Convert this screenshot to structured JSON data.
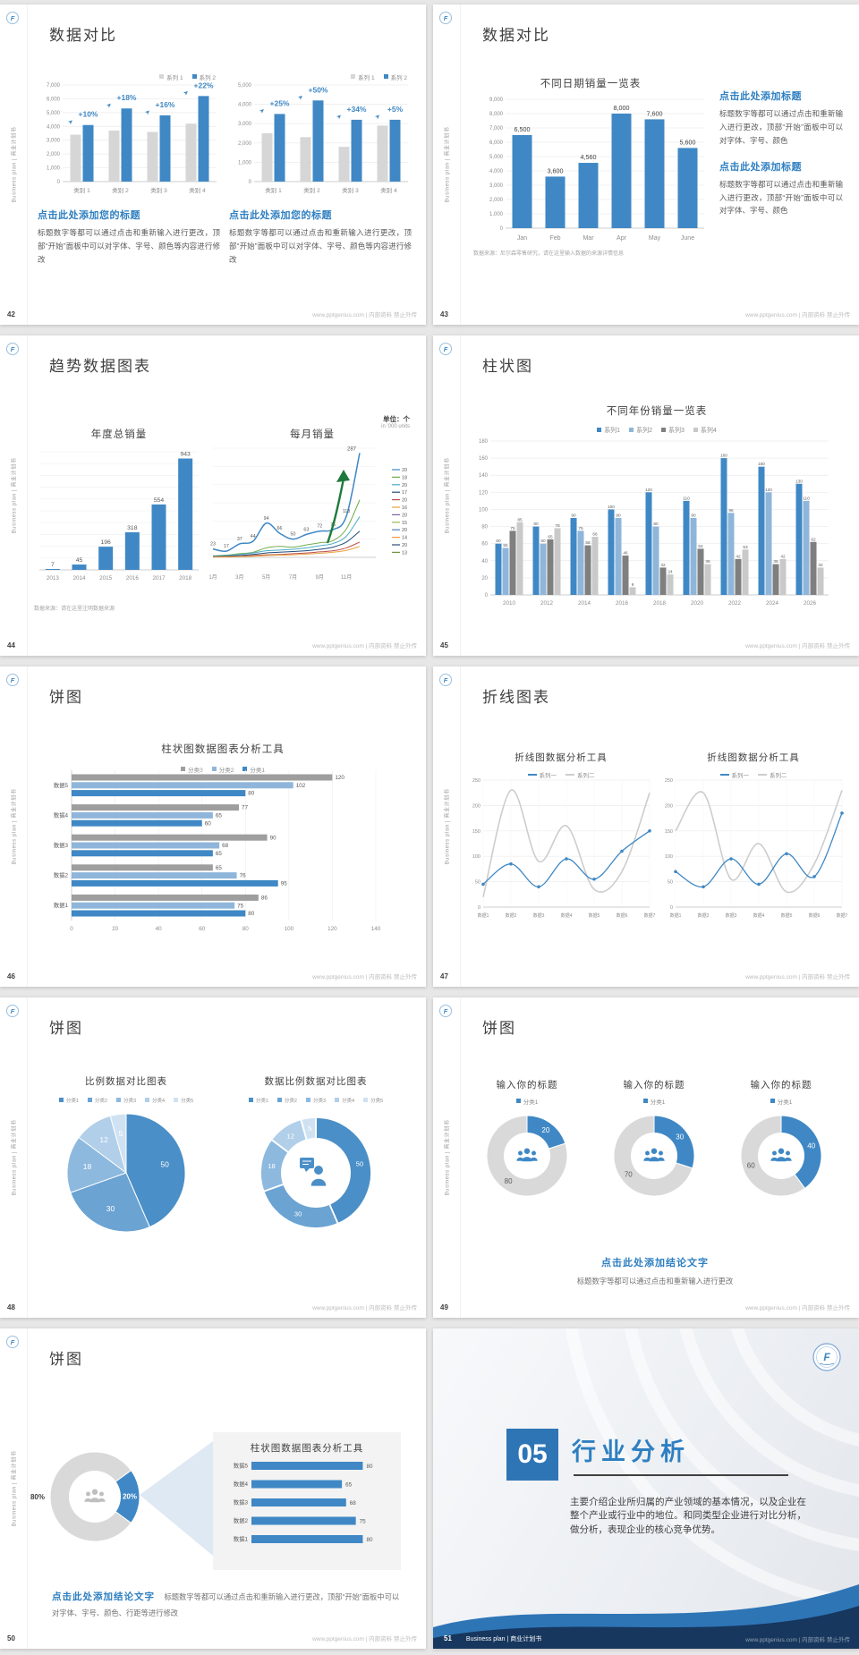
{
  "common": {
    "sidebar_text": "Business plan | 商业计划书",
    "watermark": "www.pptgenius.com | 内部资料 禁止外传",
    "colors": {
      "blue": "#3f88c5",
      "light_blue": "#8fb6da",
      "heading_blue": "#2e7fc1",
      "gray_bar": "#d6d6d6"
    }
  },
  "s42": {
    "page": "42",
    "title": "数据对比",
    "legend": [
      "系列 1",
      "系列 2"
    ],
    "heading": "点击此处添加您的标题",
    "body": "标题数字等都可以通过点击和重新输入进行更改，顶部“开始”面板中可以对字体、字号、颜色等内容进行修改",
    "chart_a": {
      "type": "bar",
      "categories": [
        "类别 1",
        "类别 2",
        "类别 3",
        "类别 4"
      ],
      "series": [
        {
          "name": "系列 1",
          "values": [
            3400,
            3700,
            3600,
            4200
          ]
        },
        {
          "name": "系列 2",
          "values": [
            4100,
            5300,
            4800,
            6200
          ]
        }
      ],
      "growth_labels": [
        "+10%",
        "+18%",
        "+16%",
        "+22%"
      ],
      "ylim": [
        0,
        7000
      ],
      "ystep": 1000
    },
    "chart_b": {
      "type": "bar",
      "categories": [
        "类别 1",
        "类别 2",
        "类别 3",
        "类别 4"
      ],
      "series": [
        {
          "name": "系列 1",
          "values": [
            2500,
            2300,
            1800,
            2900
          ]
        },
        {
          "name": "系列 2",
          "values": [
            3500,
            4200,
            3200,
            3200
          ]
        }
      ],
      "growth_labels": [
        "+25%",
        "+50%",
        "+34%",
        "+5%"
      ],
      "ylim": [
        0,
        5000
      ],
      "ystep": 1000
    }
  },
  "s43": {
    "page": "43",
    "title": "数据对比",
    "chart": {
      "type": "bar",
      "title": "不同日期销量一览表",
      "categories": [
        "Jan",
        "Feb",
        "Mar",
        "Apr",
        "May",
        "June"
      ],
      "values": [
        6500,
        3600,
        4560,
        8000,
        7600,
        5600
      ],
      "labels": [
        "6,500",
        "3,600",
        "4,560",
        "8,000",
        "7,600",
        "5,600"
      ],
      "ylim": [
        0,
        9000
      ],
      "ystep": 1000
    },
    "note": "数据来源：尼尔森零售研究，请在这里输入数据的来源详情信息",
    "blocks": [
      {
        "heading": "点击此处添加标题",
        "body": "标题数字等都可以通过点击和重新输入进行更改，顶部“开始”面板中可以对字体、字号、颜色"
      },
      {
        "heading": "点击此处添加标题",
        "body": "标题数字等都可以通过点击和重新输入进行更改，顶部“开始”面板中可以对字体、字号、颜色"
      }
    ]
  },
  "s44": {
    "page": "44",
    "title": "趋势数据图表",
    "unit_label": "单位：个",
    "unit_sub": "in '000 units",
    "note": "数据来源：请在这里注明数据来源",
    "chart_annual": {
      "type": "bar",
      "title": "年度总销量",
      "categories": [
        "2013",
        "2014",
        "2015",
        "2016",
        "2017",
        "2018"
      ],
      "values": [
        7,
        45,
        196,
        318,
        554,
        943
      ],
      "ylim": [
        0,
        1000
      ]
    },
    "chart_monthly": {
      "type": "line",
      "title": "每月销量",
      "x_labels": [
        "1月",
        "3月",
        "5月",
        "7月",
        "9月",
        "11月"
      ],
      "main_series": {
        "name": "系列1",
        "values": [
          23,
          17,
          37,
          44,
          94,
          66,
          50,
          63,
          72,
          76,
          113,
          287
        ]
      },
      "point_labels": [
        "23",
        "17",
        "37",
        "44",
        "94",
        "66",
        "50",
        "63",
        "72",
        "76",
        "113",
        "287"
      ],
      "support_series": [
        [
          4,
          6,
          10,
          14,
          26,
          30,
          28,
          34,
          40,
          46,
          78,
          158
        ],
        [
          3,
          5,
          8,
          12,
          18,
          20,
          22,
          26,
          32,
          38,
          58,
          112
        ],
        [
          2,
          3,
          5,
          8,
          12,
          14,
          16,
          18,
          22,
          28,
          42,
          72
        ],
        [
          1,
          2,
          3,
          5,
          7,
          8,
          10,
          12,
          15,
          18,
          26,
          42
        ],
        [
          1,
          1,
          2,
          3,
          5,
          6,
          7,
          9,
          11,
          14,
          19,
          30
        ]
      ],
      "end_labels": [
        "20",
        "18",
        "20",
        "17",
        "20",
        "16",
        "20",
        "15",
        "20",
        "14",
        "20",
        "13"
      ],
      "ylim": [
        0,
        300
      ]
    }
  },
  "s45": {
    "page": "45",
    "title": "柱状图",
    "chart": {
      "type": "bar",
      "title": "不同年份销量一览表",
      "legend": [
        "系列1",
        "系列2",
        "系列3",
        "系列4"
      ],
      "categories": [
        "2010",
        "2012",
        "2014",
        "2016",
        "2018",
        "2020",
        "2022",
        "2024",
        "2026"
      ],
      "series": [
        {
          "name": "系列1",
          "values": [
            60,
            80,
            90,
            100,
            120,
            110,
            160,
            150,
            130
          ]
        },
        {
          "name": "系列2",
          "values": [
            55,
            60,
            75,
            90,
            80,
            90,
            96,
            120,
            110
          ]
        },
        {
          "name": "系列3",
          "values": [
            75,
            65,
            58,
            46,
            32,
            54,
            42,
            36,
            62
          ]
        },
        {
          "name": "系列4",
          "values": [
            85,
            78,
            68,
            9,
            24,
            36,
            53,
            42,
            32
          ]
        }
      ],
      "ylim": [
        0,
        180
      ],
      "ystep": 20
    }
  },
  "s46": {
    "page": "46",
    "title": "饼图",
    "chart": {
      "type": "bar-horizontal",
      "title": "柱状图数据图表分析工具",
      "legend": [
        "分类3",
        "分类2",
        "分类1"
      ],
      "categories": [
        "数据5",
        "数据4",
        "数据3",
        "数据2",
        "数据1"
      ],
      "series": [
        {
          "name": "分类3",
          "values": [
            120,
            77,
            90,
            65,
            86
          ]
        },
        {
          "name": "分类2",
          "values": [
            102,
            65,
            68,
            76,
            75
          ]
        },
        {
          "name": "分类1",
          "values": [
            80,
            60,
            65,
            95,
            80
          ]
        }
      ],
      "xlim": [
        0,
        140
      ],
      "xstep": 20
    }
  },
  "s47": {
    "page": "47",
    "title": "折线图表",
    "charts": [
      {
        "type": "line",
        "title": "折线图数据分析工具",
        "legend": [
          "系列一",
          "系列二"
        ],
        "x": [
          "数据1",
          "数据2",
          "数据3",
          "数据4",
          "数据5",
          "数据6",
          "数据7"
        ],
        "series": [
          {
            "name": "系列一",
            "values": [
              45,
              85,
              40,
              95,
              55,
              110,
              150
            ]
          },
          {
            "name": "系列二",
            "values": [
              20,
              230,
              90,
              160,
              35,
              70,
              225
            ]
          }
        ],
        "ylim": [
          0,
          250
        ],
        "ystep": 50
      },
      {
        "type": "line",
        "title": "折线图数据分析工具",
        "legend": [
          "系列一",
          "系列二"
        ],
        "x": [
          "数据1",
          "数据2",
          "数据3",
          "数据4",
          "数据5",
          "数据6",
          "数据7"
        ],
        "series": [
          {
            "name": "系列一",
            "values": [
              70,
              40,
              95,
              45,
              105,
              60,
              185
            ]
          },
          {
            "name": "系列二",
            "values": [
              150,
              225,
              55,
              125,
              30,
              85,
              230
            ]
          }
        ],
        "ylim": [
          0,
          250
        ],
        "ystep": 50
      }
    ]
  },
  "s48": {
    "page": "48",
    "title": "饼图",
    "chart_left": {
      "type": "pie",
      "title": "比例数据对比图表",
      "legend": [
        "分类1",
        "分类2",
        "分类3",
        "分类4",
        "分类5"
      ],
      "values": [
        50,
        30,
        18,
        12,
        5
      ]
    },
    "chart_right": {
      "type": "donut",
      "title": "数据比例数据对比图表",
      "legend": [
        "分类1",
        "分类2",
        "分类3",
        "分类4",
        "分类5"
      ],
      "values": [
        50,
        30,
        18,
        12,
        5
      ]
    }
  },
  "s49": {
    "page": "49",
    "title": "饼图",
    "donuts": [
      {
        "title": "输入你的标题",
        "legend": "分类1",
        "value": 20,
        "rest": 80
      },
      {
        "title": "输入你的标题",
        "legend": "分类1",
        "value": 30,
        "rest": 70
      },
      {
        "title": "输入你的标题",
        "legend": "分类1",
        "value": 40,
        "rest": 60
      }
    ],
    "conclusion": "点击此处添加结论文字",
    "body": "标题数字等都可以通过点击和重新输入进行更改"
  },
  "s50": {
    "page": "50",
    "title": "饼图",
    "donut": {
      "type": "donut",
      "blue_label": "20%",
      "gray_label": "80%",
      "blue": 20,
      "gray": 80
    },
    "panel_chart": {
      "type": "bar-horizontal",
      "title": "柱状图数据图表分析工具",
      "categories": [
        "数据5",
        "数据4",
        "数据3",
        "数据2",
        "数据1"
      ],
      "values": [
        80,
        65,
        68,
        75,
        80
      ]
    },
    "conclusion": "点击此处添加结论文字",
    "body": "标题数字等都可以通过点击和重新输入进行更改，顶部“开始”面板中可以对字体、字号、颜色、行距等进行修改"
  },
  "s51": {
    "page": "51",
    "number": "05",
    "title": "行业分析",
    "body": "主要介绍企业所归属的产业领域的基本情况，以及企业在整个产业或行业中的地位。和同类型企业进行对比分析，做分析，表现企业的核心竞争优势。",
    "footer": "Business plan | 商业计划书"
  }
}
